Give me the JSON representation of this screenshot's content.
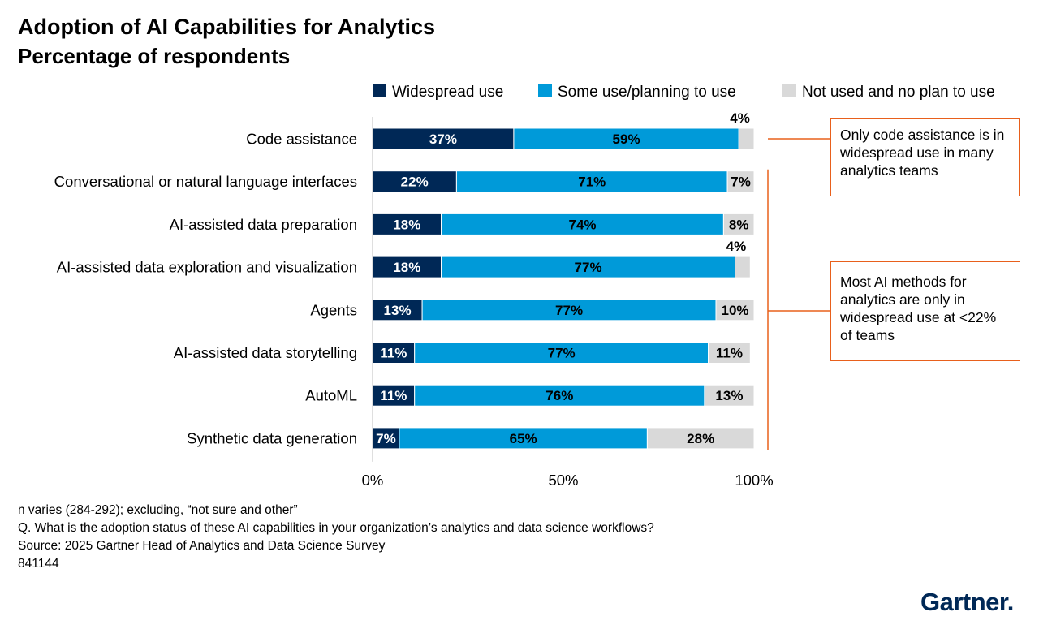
{
  "title": "Adoption of AI Capabilities for Analytics",
  "subtitle": "Percentage of respondents",
  "colors": {
    "widespread": "#002856",
    "some": "#009ad9",
    "not_used": "#d9d9d9",
    "accent": "#e8601c",
    "brand": "#002856"
  },
  "chart_data": {
    "type": "bar",
    "orientation": "horizontal",
    "stacked": true,
    "categories": [
      "Code assistance",
      "Conversational or natural language interfaces",
      "AI-assisted data preparation",
      "AI-assisted data exploration and visualization",
      "Agents",
      "AI-assisted data storytelling",
      "AutoML",
      "Synthetic data generation"
    ],
    "series": [
      {
        "name": "Widespread use",
        "values": [
          37,
          22,
          18,
          18,
          13,
          11,
          11,
          7
        ]
      },
      {
        "name": "Some use/planning to use",
        "values": [
          59,
          71,
          74,
          77,
          77,
          77,
          76,
          65
        ]
      },
      {
        "name": "Not used and no plan to use",
        "values": [
          4,
          7,
          8,
          4,
          10,
          11,
          13,
          28
        ]
      }
    ],
    "xlim": [
      0,
      100
    ],
    "xticks": [
      "0%",
      "50%",
      "100%"
    ],
    "legend_position": "top",
    "value_suffix": "%"
  },
  "callouts": [
    {
      "text": "Only code assistance is in widespread use in many analytics teams"
    },
    {
      "text": "Most AI methods for analytics are only in widespread use at <22% of teams"
    }
  ],
  "notes": [
    "n varies (284-292); excluding, “not sure and other”",
    "Q. What is the adoption status of these AI capabilities in your organization’s analytics and data science workflows?",
    "Source: 2025 Gartner Head of Analytics and Data Science Survey",
    "841144"
  ],
  "brand": {
    "name": "Gartner"
  }
}
